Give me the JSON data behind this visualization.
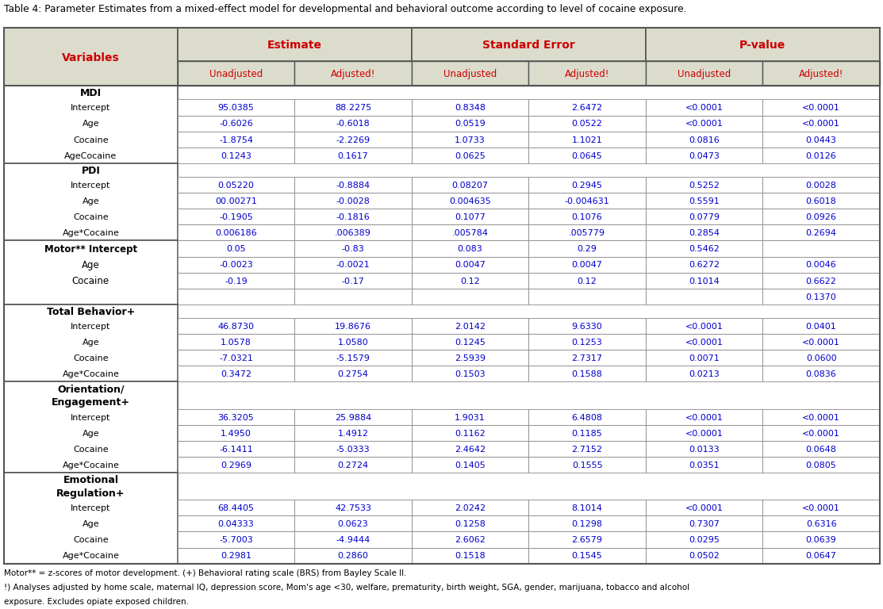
{
  "title": "Table 4: Parameter Estimates from a mixed-effect model for developmental and behavioral outcome according to level of cocaine exposure.",
  "header_bg": "#dcdccc",
  "header_bold_color": "#cc0000",
  "data_color": "#0000cc",
  "group_color": "#000000",
  "border_color": "#888888",
  "thick_border": "#555555",
  "subheaders": [
    "Unadjusted",
    "Adjusted!",
    "Unadjusted",
    "Adjusted!",
    "Unadjusted",
    "Adjusted!"
  ],
  "sections": [
    {
      "group": "MDI",
      "group_lines": 1,
      "special_motor": false,
      "rows": [
        [
          "Intercept",
          "95.0385",
          "88.2275",
          "0.8348",
          "2.6472",
          "<0.0001",
          "<0.0001"
        ],
        [
          "Age",
          "-0.6026",
          "-0.6018",
          "0.0519",
          "0.0522",
          "<0.0001",
          "<0.0001"
        ],
        [
          "Cocaine",
          "-1.8754",
          "-2.2269",
          "1.0733",
          "1.1021",
          "0.0816",
          "0.0443"
        ],
        [
          "AgeCocaine",
          "0.1243",
          "0.1617",
          "0.0625",
          "0.0645",
          "0.0473",
          "0.0126"
        ]
      ]
    },
    {
      "group": "PDI",
      "group_lines": 1,
      "special_motor": false,
      "rows": [
        [
          "Intercept",
          "0.05220",
          "-0.8884",
          "0.08207",
          "0.2945",
          "0.5252",
          "0.0028"
        ],
        [
          "Age",
          "00.00271",
          "-0.0028",
          "0.004635",
          "-0.004631",
          "0.5591",
          "0.6018"
        ],
        [
          "Cocaine",
          "-0.1905",
          "-0.1816",
          "0.1077",
          "0.1076",
          "0.0779",
          "0.0926"
        ],
        [
          "Age*Cocaine",
          "0.006186",
          ".006389",
          ".005784",
          ".005779",
          "0.2854",
          "0.2694"
        ]
      ]
    },
    {
      "group": "Motor** Intercept\nAge\nCocaine",
      "group_lines": 3,
      "special_motor": true,
      "rows": [
        [
          "",
          "0.05",
          "-0.83",
          "0.083",
          "0.29",
          "0.5462",
          ""
        ],
        [
          "",
          "-0.0023",
          "-0.0021",
          "0.0047",
          "0.0047",
          "0.6272",
          "0.0046"
        ],
        [
          "",
          "-0.19",
          "-0.17",
          "0.12",
          "0.12",
          "0.1014",
          "0.6622"
        ],
        [
          "",
          "",
          "",
          "",
          "",
          "",
          "0.1370"
        ]
      ]
    },
    {
      "group": "Total Behavior+",
      "group_lines": 1,
      "special_motor": false,
      "rows": [
        [
          "Intercept",
          "46.8730",
          "19.8676",
          "2.0142",
          "9.6330",
          "<0.0001",
          "0.0401"
        ],
        [
          "Age",
          "1.0578",
          "1.0580",
          "0.1245",
          "0.1253",
          "<0.0001",
          "<0.0001"
        ],
        [
          "Cocaine",
          "-7.0321",
          "-5.1579",
          "2.5939",
          "2.7317",
          "0.0071",
          "0.0600"
        ],
        [
          "Age*Cocaine",
          "0.3472",
          "0.2754",
          "0.1503",
          "0.1588",
          "0.0213",
          "0.0836"
        ]
      ]
    },
    {
      "group": "Orientation/\nEngagement+",
      "group_lines": 2,
      "special_motor": false,
      "rows": [
        [
          "Intercept",
          "36.3205",
          "25.9884",
          "1.9031",
          "6.4808",
          "<0.0001",
          "<0.0001"
        ],
        [
          "Age",
          "1.4950",
          "1.4912",
          "0.1162",
          "0.1185",
          "<0.0001",
          "<0.0001"
        ],
        [
          "Cocaine",
          "-6.1411",
          "-5.0333",
          "2.4642",
          "2.7152",
          "0.0133",
          "0.0648"
        ],
        [
          "Age*Cocaine",
          "0.2969",
          "0.2724",
          "0.1405",
          "0.1555",
          "0.0351",
          "0.0805"
        ]
      ]
    },
    {
      "group": "Emotional\nRegulation+",
      "group_lines": 2,
      "special_motor": false,
      "rows": [
        [
          "Intercept",
          "68.4405",
          "42.7533",
          "2.0242",
          "8.1014",
          "<0.0001",
          "<0.0001"
        ],
        [
          "Age",
          "0.04333",
          "0.0623",
          "0.1258",
          "0.1298",
          "0.7307",
          "0.6316"
        ],
        [
          "Cocaine",
          "-5.7003",
          "-4.9444",
          "2.6062",
          "2.6579",
          "0.0295",
          "0.0639"
        ],
        [
          "Age*Cocaine",
          "0.2981",
          "0.2860",
          "0.1518",
          "0.1545",
          "0.0502",
          "0.0647"
        ]
      ]
    }
  ],
  "footnotes": [
    "Motor** = z-scores of motor development. (+) Behavioral rating scale (BRS) from Bayley Scale II.",
    "!) Analyses adjusted by home scale, maternal IQ, depression score, Mom's age <30, welfare, prematurity, birth weight, SGA, gender, marijuana, tobacco and alcohol",
    "exposure. Excludes opiate exposed children."
  ]
}
